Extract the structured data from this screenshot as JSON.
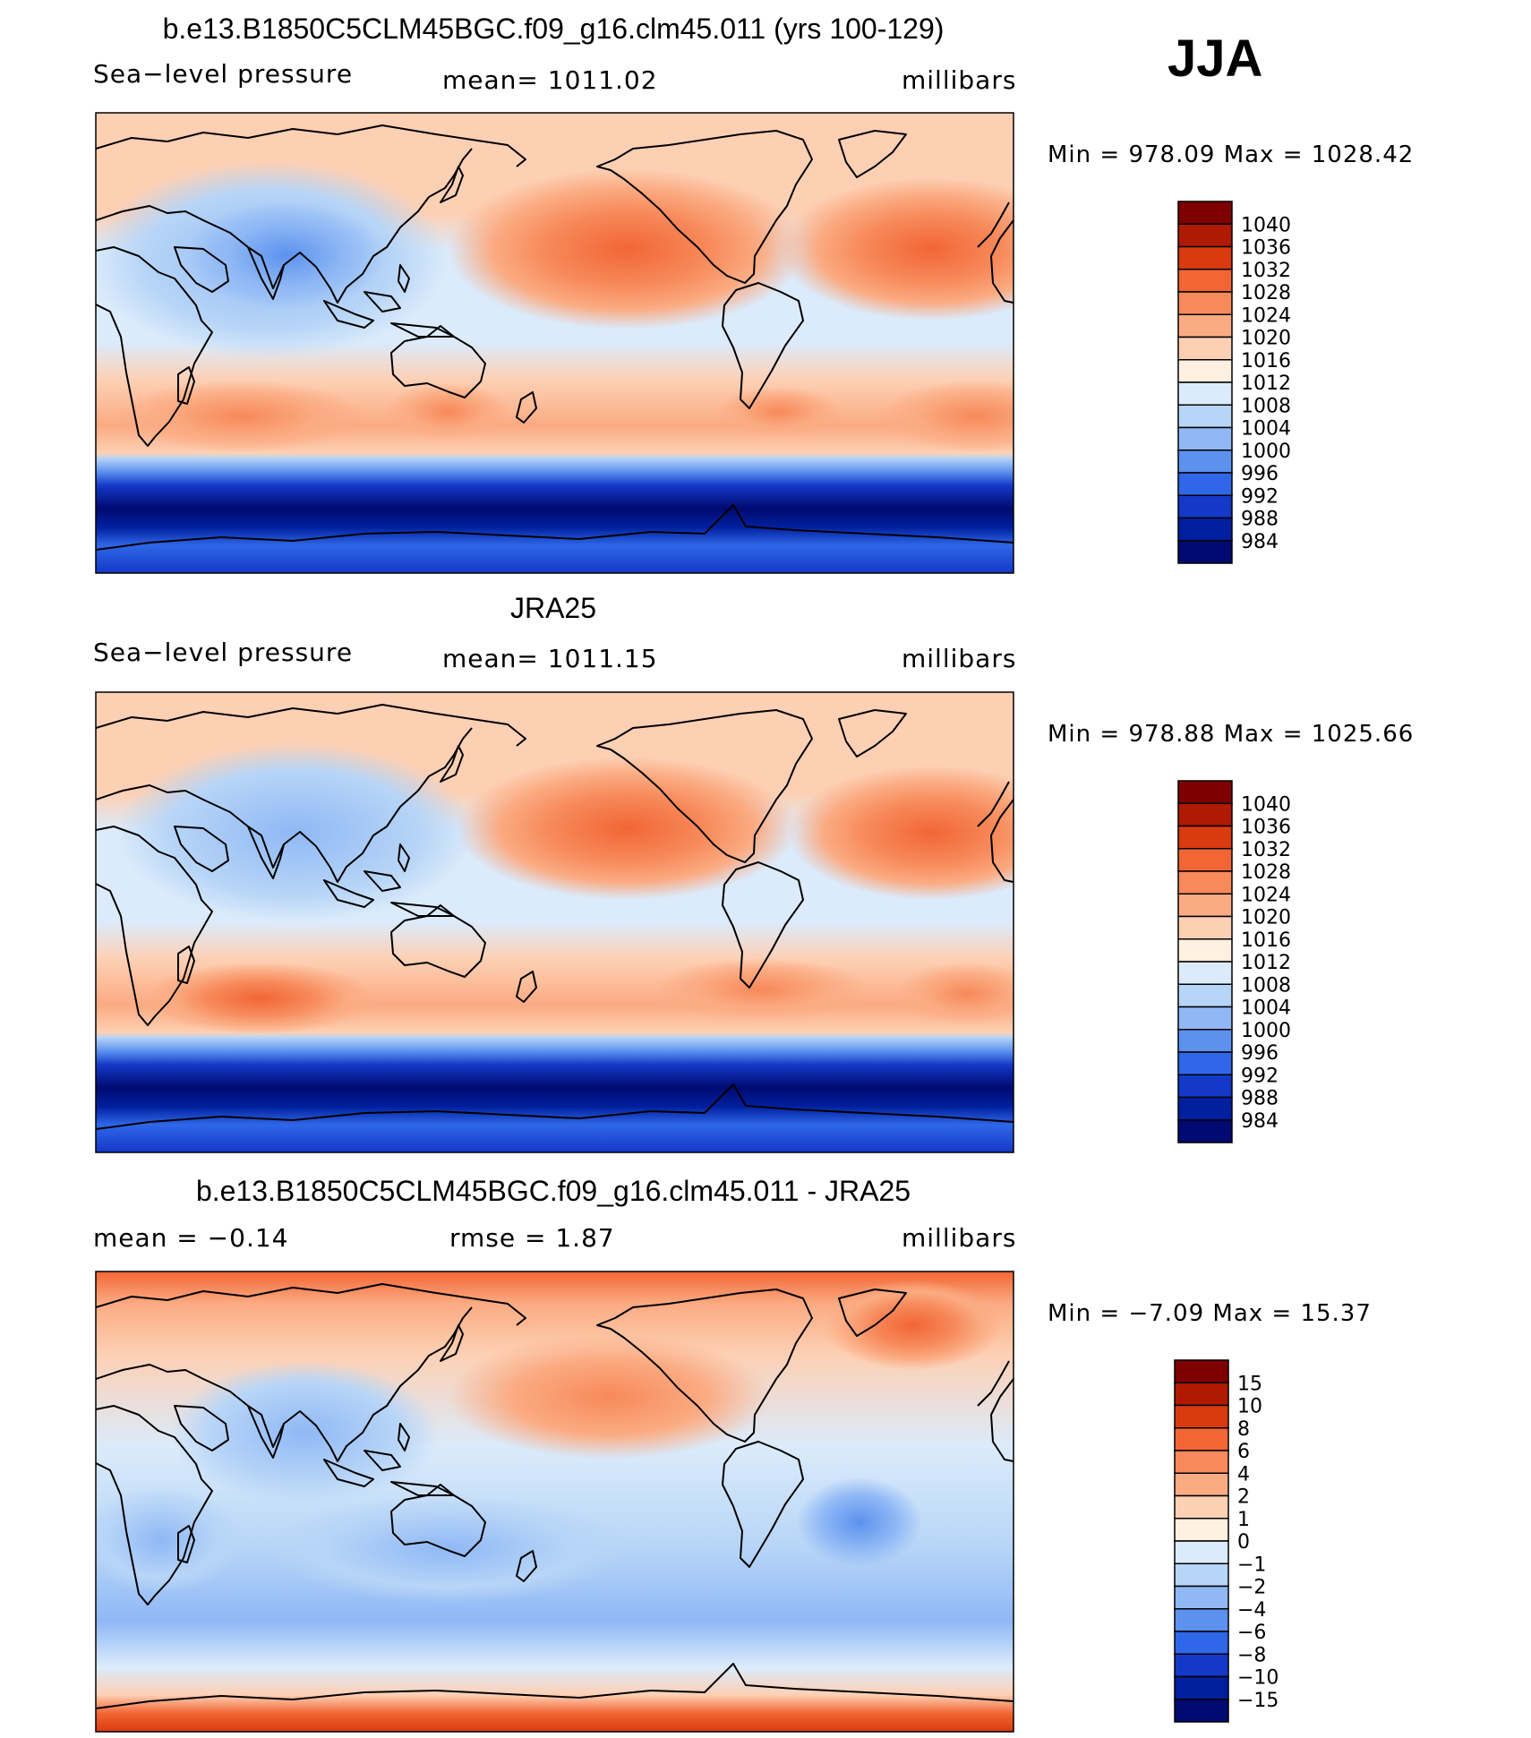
{
  "season": "JJA",
  "panels": [
    {
      "title": "b.e13.B1850C5CLM45BGC.f09_g16.clm45.011 (yrs 100-129)",
      "left": "Sea−level pressure",
      "center": "mean=  1011.02",
      "right": "millibars",
      "minmax": "Min  =  978.09  Max  =  1028.42"
    },
    {
      "title": "JRA25",
      "left": "Sea−level pressure",
      "center": "mean=  1011.15",
      "right": "millibars",
      "minmax": "Min  =  978.88  Max  =  1025.66"
    },
    {
      "title": "b.e13.B1850C5CLM45BGC.f09_g16.clm45.011 - JRA25",
      "left": "mean  =    −0.14",
      "center": "rmse  =     1.87",
      "right": "millibars",
      "minmax": "Min  =    −7.09  Max  =    15.37"
    }
  ],
  "chart_data": [
    {
      "type": "heatmap",
      "title": "b.e13.B1850C5CLM45BGC.f09_g16.clm45.011 (yrs 100-129)",
      "variable": "Sea-level pressure",
      "units": "millibars",
      "mean": 1011.02,
      "min": 978.09,
      "max": 1028.42,
      "colorbar_levels": [
        "1040",
        "1036",
        "1032",
        "1028",
        "1024",
        "1020",
        "1016",
        "1012",
        "1008",
        "1004",
        "1000",
        "996",
        "992",
        "988",
        "984"
      ],
      "colorbar_colors": [
        "#7f0000",
        "#b01a00",
        "#d93a10",
        "#f26635",
        "#f7895a",
        "#fbab82",
        "#fdd0b4",
        "#fff0df",
        "#dbebfb",
        "#b7d5f7",
        "#8fb8f5",
        "#5c92ee",
        "#2f67e8",
        "#1438c8",
        "#001f9e",
        "#000a70"
      ]
    },
    {
      "type": "heatmap",
      "title": "JRA25",
      "variable": "Sea-level pressure",
      "units": "millibars",
      "mean": 1011.15,
      "min": 978.88,
      "max": 1025.66,
      "colorbar_levels": [
        "1040",
        "1036",
        "1032",
        "1028",
        "1024",
        "1020",
        "1016",
        "1012",
        "1008",
        "1004",
        "1000",
        "996",
        "992",
        "988",
        "984"
      ],
      "colorbar_colors": [
        "#7f0000",
        "#b01a00",
        "#d93a10",
        "#f26635",
        "#f7895a",
        "#fbab82",
        "#fdd0b4",
        "#fff0df",
        "#dbebfb",
        "#b7d5f7",
        "#8fb8f5",
        "#5c92ee",
        "#2f67e8",
        "#1438c8",
        "#001f9e",
        "#000a70"
      ]
    },
    {
      "type": "heatmap",
      "title": "b.e13.B1850C5CLM45BGC.f09_g16.clm45.011 - JRA25",
      "units": "millibars",
      "mean": -0.14,
      "rmse": 1.87,
      "min": -7.09,
      "max": 15.37,
      "colorbar_levels": [
        "15",
        "10",
        "8",
        "6",
        "4",
        "2",
        "1",
        "0",
        "−1",
        "−2",
        "−4",
        "−6",
        "−8",
        "−10",
        "−15"
      ],
      "colorbar_colors": [
        "#7f0000",
        "#b01a00",
        "#d93a10",
        "#f26635",
        "#f7895a",
        "#fbab82",
        "#fdd0b4",
        "#fff0df",
        "#dbebfb",
        "#b7d5f7",
        "#8fb8f5",
        "#5c92ee",
        "#2f67e8",
        "#1438c8",
        "#001f9e",
        "#000a70"
      ]
    }
  ]
}
